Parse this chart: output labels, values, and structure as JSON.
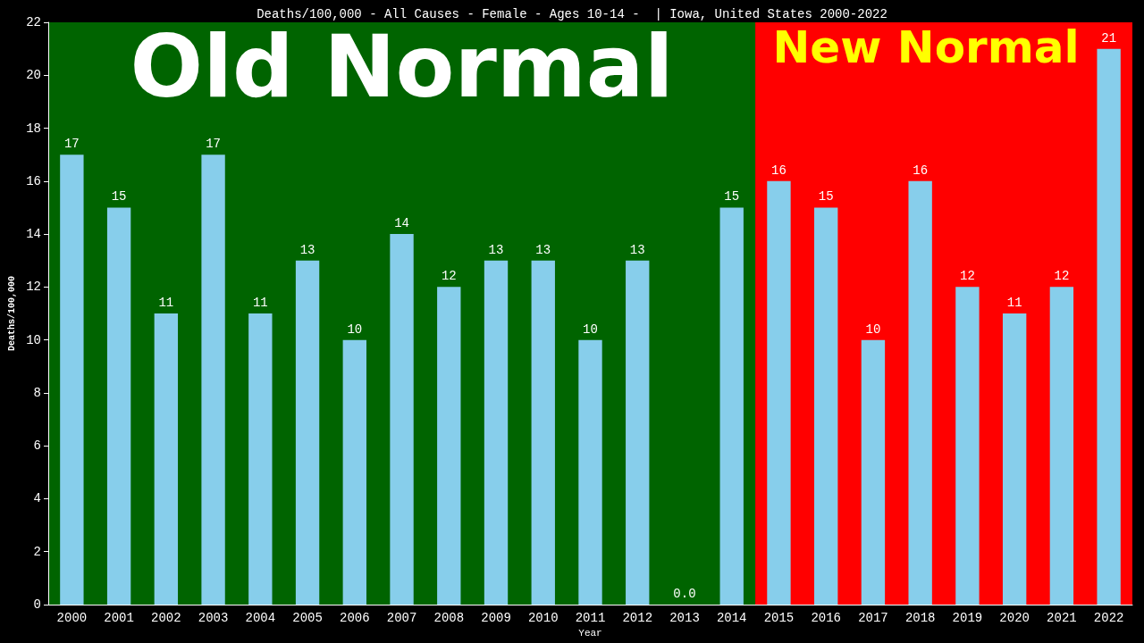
{
  "chart_data": {
    "type": "bar",
    "title": "Deaths/100,000 - All Causes - Female - Ages 10-14 -  | Iowa, United States 2000-2022",
    "xlabel": "Year",
    "ylabel": "Deaths/100,000",
    "categories": [
      "2000",
      "2001",
      "2002",
      "2003",
      "2004",
      "2005",
      "2006",
      "2007",
      "2008",
      "2009",
      "2010",
      "2011",
      "2012",
      "2013",
      "2014",
      "2015",
      "2016",
      "2017",
      "2018",
      "2019",
      "2020",
      "2021",
      "2022"
    ],
    "values": [
      17,
      15,
      11,
      17,
      11,
      13,
      10,
      14,
      12,
      13,
      13,
      10,
      13,
      0,
      15,
      16,
      15,
      10,
      16,
      12,
      11,
      12,
      21
    ],
    "value_labels": [
      "17",
      "15",
      "11",
      "17",
      "11",
      "13",
      "10",
      "14",
      "12",
      "13",
      "13",
      "10",
      "13",
      "0.0",
      "15",
      "16",
      "15",
      "10",
      "16",
      "12",
      "11",
      "12",
      "21"
    ],
    "color": "#87ceeb",
    "ylim": [
      0,
      22
    ],
    "yticks": [
      0,
      2,
      4,
      6,
      8,
      10,
      12,
      14,
      16,
      18,
      20,
      22
    ],
    "bands": [
      {
        "axis": "x",
        "from": "2000",
        "to": "2014",
        "label": "Old Normal",
        "color": "#006400"
      },
      {
        "axis": "x",
        "from": "2015",
        "to": "2022",
        "label": "New Normal",
        "color": "#ff0000"
      }
    ],
    "grid": false
  }
}
